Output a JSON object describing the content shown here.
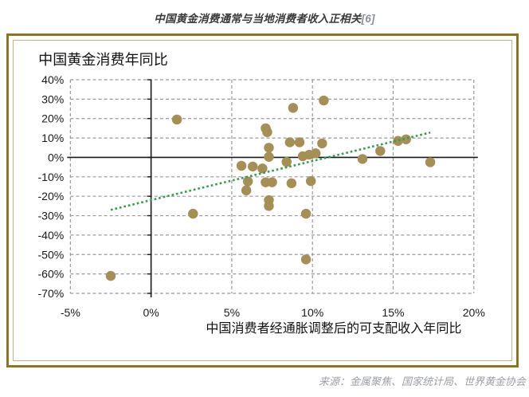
{
  "page": {
    "title_text": "中国黄金消费通常与当地消费者收入正相关",
    "title_ref": "[6]",
    "source": "来源：金属聚焦、国家统计局、世界黄金协会"
  },
  "chart_data": {
    "type": "scatter",
    "title": "中国黄金消费年同比",
    "xlabel": "中国消费者经通胀调整后的可支配收入年同比",
    "ylabel": "中国黄金消费年同比",
    "xlim": [
      -5,
      20
    ],
    "ylim": [
      -70,
      40
    ],
    "x_ticks": [
      -5,
      0,
      5,
      10,
      15,
      20
    ],
    "y_ticks": [
      40,
      30,
      20,
      10,
      0,
      -10,
      -20,
      -30,
      -40,
      -50,
      -60,
      -70
    ],
    "tick_suffix": "%",
    "grid": "dashed",
    "legend": "none",
    "points": [
      [
        -2.5,
        -61
      ],
      [
        1.6,
        19.5
      ],
      [
        2.6,
        -29
      ],
      [
        5.6,
        -4.3
      ],
      [
        6.3,
        -4.7
      ],
      [
        6.0,
        -12.4
      ],
      [
        5.9,
        -17
      ],
      [
        6.9,
        -5.7
      ],
      [
        7.1,
        15
      ],
      [
        7.2,
        13
      ],
      [
        7.3,
        5
      ],
      [
        7.3,
        0.3
      ],
      [
        7.1,
        -12.8
      ],
      [
        7.5,
        -12.8
      ],
      [
        7.3,
        -22
      ],
      [
        7.3,
        -25
      ],
      [
        8.4,
        -2.3
      ],
      [
        8.8,
        25.5
      ],
      [
        8.6,
        7.8
      ],
      [
        9.2,
        7.8
      ],
      [
        9.4,
        0.6
      ],
      [
        9.8,
        1.4
      ],
      [
        10.2,
        2.1
      ],
      [
        8.7,
        -13.3
      ],
      [
        9.9,
        -12.2
      ],
      [
        9.6,
        -29
      ],
      [
        9.6,
        -52.5
      ],
      [
        10.6,
        7.2
      ],
      [
        10.7,
        29.3
      ],
      [
        13.1,
        -0.8
      ],
      [
        14.2,
        3.3
      ],
      [
        15.3,
        8.5
      ],
      [
        15.8,
        9.3
      ],
      [
        17.3,
        -2.5
      ]
    ],
    "trendline": {
      "x1": -2.5,
      "y1": -27,
      "x2": 17.3,
      "y2": 12.8,
      "style": "dotted"
    },
    "colors": {
      "point": "#A58F55",
      "trend": "#2F9E4E",
      "grid": "#999999",
      "axis": "#1a1a1a",
      "frame_outer": "#8E7324",
      "frame_inner": "#C3B28A",
      "tick_text": "#1a1a1a"
    }
  }
}
